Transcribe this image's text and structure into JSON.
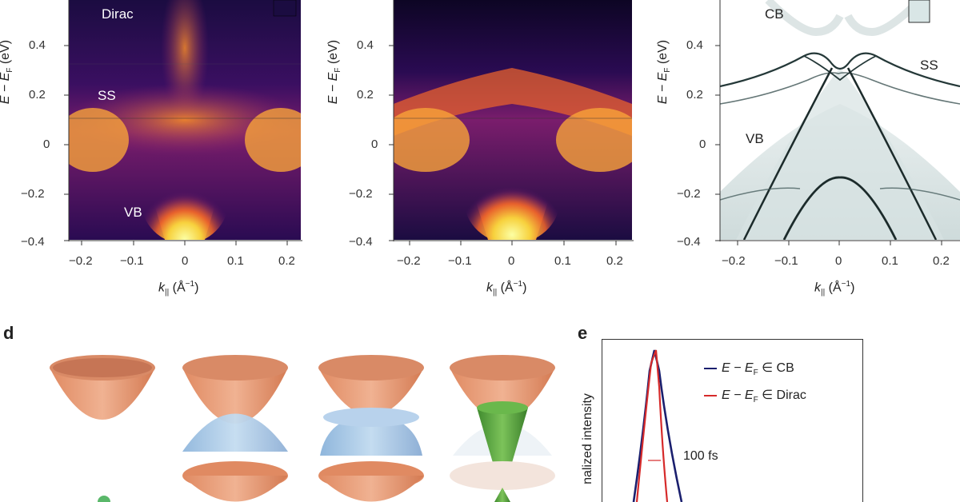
{
  "panels_top": [
    {
      "name": "arpes-left",
      "labels": [
        "Dirac",
        "SS",
        "VB"
      ],
      "ylabel_text": "E − E",
      "ylabel_sub": "F",
      "ylabel_unit": "(eV)",
      "yticks": [
        "0.4",
        "0.2",
        "0",
        "−0.2",
        "−0.4"
      ],
      "xticks": [
        "−0.2",
        "−0.1",
        "0",
        "0.1",
        "0.2"
      ],
      "xlabel_k": "k",
      "xlabel_sub": "||",
      "xlabel_unit": "(Å",
      "xlabel_sup": "−1",
      "xlabel_close": ")"
    },
    {
      "name": "arpes-middle",
      "labels": [],
      "ylabel_text": "E − E",
      "ylabel_sub": "F",
      "ylabel_unit": "(eV)",
      "yticks": [
        "0.4",
        "0.2",
        "0",
        "−0.2",
        "−0.4"
      ],
      "xticks": [
        "−0.2",
        "−0.1",
        "0",
        "0.1",
        "0.2"
      ],
      "xlabel_k": "k",
      "xlabel_sub": "||",
      "xlabel_unit": "(Å",
      "xlabel_sup": "−1",
      "xlabel_close": ")"
    },
    {
      "name": "calc-right",
      "labels": [
        "CB",
        "SS",
        "VB"
      ],
      "ylabel_text": "E − E",
      "ylabel_sub": "F",
      "ylabel_unit": "(eV)",
      "yticks": [
        "0.4",
        "0.2",
        "0",
        "−0.2",
        "−0.4"
      ],
      "xticks": [
        "−0.2",
        "−0.1",
        "0",
        "0.1",
        "0.2"
      ],
      "xlabel_k": "k",
      "xlabel_sub": "||",
      "xlabel_unit": "(Å",
      "xlabel_sup": "−1",
      "xlabel_close": ")"
    }
  ],
  "panel_d": {
    "letter": "d"
  },
  "panel_e": {
    "letter": "e",
    "ylabel": "nalized intensity",
    "legend": [
      {
        "prefix": "E − E",
        "sub": "F",
        "suffix": " ∈ CB",
        "color": "#1a1f6e"
      },
      {
        "prefix": "E − E",
        "sub": "F",
        "suffix": " ∈ Dirac",
        "color": "#d62a2a"
      }
    ],
    "annotation": "100 fs"
  },
  "colors": {
    "inferno_dark": "#1b0c41",
    "inferno_purple": "#5c126e",
    "inferno_orange": "#e8612c",
    "inferno_yellow": "#fcffa4",
    "cone_orange": "#e79a73",
    "cone_blue": "#a8c8e6",
    "cone_green": "#5aa541"
  }
}
